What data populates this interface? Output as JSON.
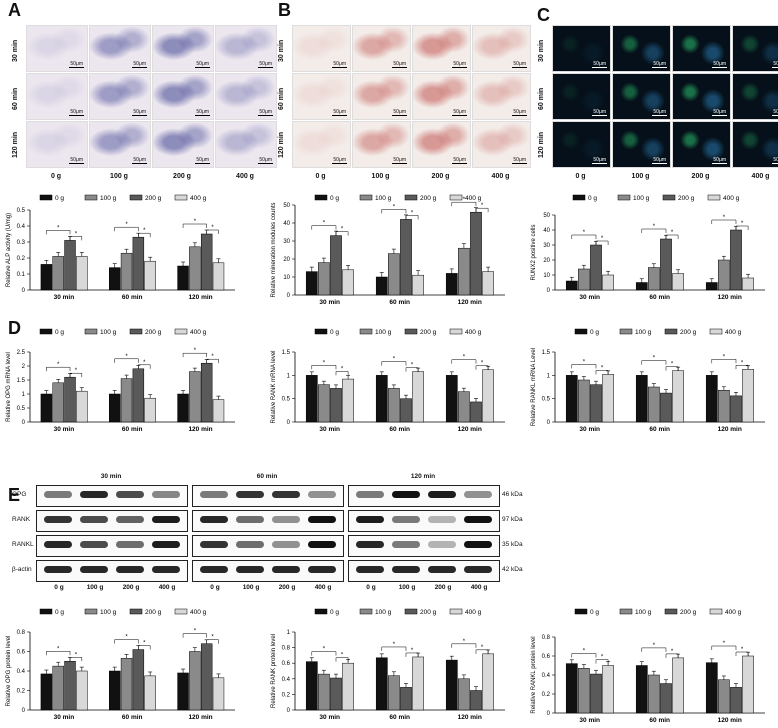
{
  "panels": {
    "A": "A",
    "B": "B",
    "C": "C",
    "D": "D",
    "E": "E"
  },
  "micro": {
    "rows": [
      "30 min",
      "60 min",
      "120 min"
    ],
    "cols": [
      "0 g",
      "100 g",
      "200 g",
      "400 g"
    ],
    "scale": "50μm",
    "colors": {
      "alp": "#3a3f8f",
      "ars": "#c0504d",
      "runx": "#2ecc71"
    }
  },
  "legend": {
    "groups": [
      "0 g",
      "100 g",
      "200 g",
      "400 g"
    ],
    "colors": [
      "#111111",
      "#8a8a8a",
      "#5a5a5a",
      "#d8d8d8"
    ]
  },
  "wb": {
    "timepoints": [
      "30 min",
      "60 min",
      "120 min"
    ],
    "rows": [
      "OPG",
      "RANK",
      "RANKL",
      "β-actin"
    ],
    "sizes": [
      "46 kDa",
      "97 kDa",
      "35 kDa",
      "42 kDa"
    ],
    "lanes": [
      "0 g",
      "100 g",
      "200 g",
      "400 g"
    ]
  },
  "chart_data": [
    {
      "id": "A",
      "type": "bar",
      "ylabel": "Relative ALP activity (U/mg)",
      "categories": [
        "30 min",
        "60 min",
        "120 min"
      ],
      "ylim": [
        0,
        0.5
      ],
      "yticks": [
        0.0,
        0.1,
        0.2,
        0.3,
        0.4,
        0.5
      ],
      "series": [
        {
          "name": "0 g",
          "values": [
            0.16,
            0.14,
            0.15
          ]
        },
        {
          "name": "100 g",
          "values": [
            0.21,
            0.23,
            0.27
          ]
        },
        {
          "name": "200 g",
          "values": [
            0.31,
            0.33,
            0.35
          ]
        },
        {
          "name": "400 g",
          "values": [
            0.21,
            0.18,
            0.17
          ]
        }
      ]
    },
    {
      "id": "B",
      "type": "bar",
      "ylabel": "Relative mineration modules counts",
      "categories": [
        "30 min",
        "60 min",
        "120 min"
      ],
      "ylim": [
        0,
        50
      ],
      "yticks": [
        0,
        10,
        20,
        30,
        40,
        50
      ],
      "series": [
        {
          "name": "0 g",
          "values": [
            13,
            10,
            12
          ]
        },
        {
          "name": "100 g",
          "values": [
            18,
            23,
            26
          ]
        },
        {
          "name": "200 g",
          "values": [
            33,
            42,
            46
          ]
        },
        {
          "name": "400 g",
          "values": [
            14,
            11,
            13
          ]
        }
      ]
    },
    {
      "id": "C",
      "type": "bar",
      "ylabel": "RUNX2 positive cells",
      "categories": [
        "30 min",
        "60 min",
        "120 min"
      ],
      "ylim": [
        0,
        50
      ],
      "yticks": [
        0,
        10,
        20,
        30,
        40,
        50
      ],
      "series": [
        {
          "name": "0 g",
          "values": [
            6,
            5,
            5
          ]
        },
        {
          "name": "100 g",
          "values": [
            14,
            15,
            20
          ]
        },
        {
          "name": "200 g",
          "values": [
            30,
            34,
            40
          ]
        },
        {
          "name": "400 g",
          "values": [
            10,
            11,
            8
          ]
        }
      ]
    },
    {
      "id": "D1",
      "type": "bar",
      "ylabel": "Relative OPG mRNA level",
      "categories": [
        "30 min",
        "60 min",
        "120 min"
      ],
      "ylim": [
        0,
        2.5
      ],
      "yticks": [
        0.0,
        0.5,
        1.0,
        1.5,
        2.0,
        2.5
      ],
      "series": [
        {
          "name": "0 g",
          "values": [
            1.0,
            1.0,
            1.0
          ]
        },
        {
          "name": "100 g",
          "values": [
            1.4,
            1.55,
            1.8
          ]
        },
        {
          "name": "200 g",
          "values": [
            1.6,
            1.9,
            2.1
          ]
        },
        {
          "name": "400 g",
          "values": [
            1.1,
            0.85,
            0.8
          ]
        }
      ]
    },
    {
      "id": "D2",
      "type": "bar",
      "ylabel": "Relative RANK mRNA level",
      "categories": [
        "30 min",
        "60 min",
        "120 min"
      ],
      "ylim": [
        0,
        1.5
      ],
      "yticks": [
        0.0,
        0.5,
        1.0,
        1.5
      ],
      "series": [
        {
          "name": "0 g",
          "values": [
            1.0,
            1.0,
            1.0
          ]
        },
        {
          "name": "100 g",
          "values": [
            0.8,
            0.72,
            0.65
          ]
        },
        {
          "name": "200 g",
          "values": [
            0.72,
            0.5,
            0.43
          ]
        },
        {
          "name": "400 g",
          "values": [
            0.92,
            1.08,
            1.12
          ]
        }
      ]
    },
    {
      "id": "D3",
      "type": "bar",
      "ylabel": "Relative RANKL mRNA Level",
      "categories": [
        "30 min",
        "60 min",
        "120 min"
      ],
      "ylim": [
        0,
        1.5
      ],
      "yticks": [
        0.0,
        0.5,
        1.0,
        1.5
      ],
      "series": [
        {
          "name": "0 g",
          "values": [
            1.0,
            1.0,
            1.0
          ]
        },
        {
          "name": "100 g",
          "values": [
            0.9,
            0.75,
            0.68
          ]
        },
        {
          "name": "200 g",
          "values": [
            0.8,
            0.62,
            0.56
          ]
        },
        {
          "name": "400 g",
          "values": [
            1.02,
            1.1,
            1.13
          ]
        }
      ]
    },
    {
      "id": "E1",
      "type": "bar",
      "ylabel": "Relative OPG protein level",
      "categories": [
        "30 min",
        "60 min",
        "120 min"
      ],
      "ylim": [
        0,
        0.8
      ],
      "yticks": [
        0.0,
        0.2,
        0.4,
        0.6,
        0.8
      ],
      "series": [
        {
          "name": "0 g",
          "values": [
            0.37,
            0.4,
            0.38
          ]
        },
        {
          "name": "100 g",
          "values": [
            0.45,
            0.53,
            0.6
          ]
        },
        {
          "name": "200 g",
          "values": [
            0.5,
            0.62,
            0.68
          ]
        },
        {
          "name": "400 g",
          "values": [
            0.4,
            0.35,
            0.33
          ]
        }
      ]
    },
    {
      "id": "E2",
      "type": "bar",
      "ylabel": "Relative RANK protein level",
      "categories": [
        "30 min",
        "60 min",
        "120 min"
      ],
      "ylim": [
        0,
        1.0
      ],
      "yticks": [
        0.0,
        0.2,
        0.4,
        0.6,
        0.8,
        1.0
      ],
      "series": [
        {
          "name": "0 g",
          "values": [
            0.62,
            0.67,
            0.64
          ]
        },
        {
          "name": "100 g",
          "values": [
            0.46,
            0.44,
            0.4
          ]
        },
        {
          "name": "200 g",
          "values": [
            0.41,
            0.29,
            0.25
          ]
        },
        {
          "name": "400 g",
          "values": [
            0.6,
            0.68,
            0.72
          ]
        }
      ]
    },
    {
      "id": "E3",
      "type": "bar",
      "ylabel": "Relative RANKL protein level",
      "categories": [
        "30 min",
        "60 min",
        "120 min"
      ],
      "ylim": [
        0,
        0.8
      ],
      "yticks": [
        0.0,
        0.2,
        0.4,
        0.6,
        0.8
      ],
      "series": [
        {
          "name": "0 g",
          "values": [
            0.52,
            0.5,
            0.53
          ]
        },
        {
          "name": "100 g",
          "values": [
            0.47,
            0.4,
            0.35
          ]
        },
        {
          "name": "200 g",
          "values": [
            0.41,
            0.31,
            0.27
          ]
        },
        {
          "name": "400 g",
          "values": [
            0.5,
            0.58,
            0.6
          ]
        }
      ]
    }
  ]
}
